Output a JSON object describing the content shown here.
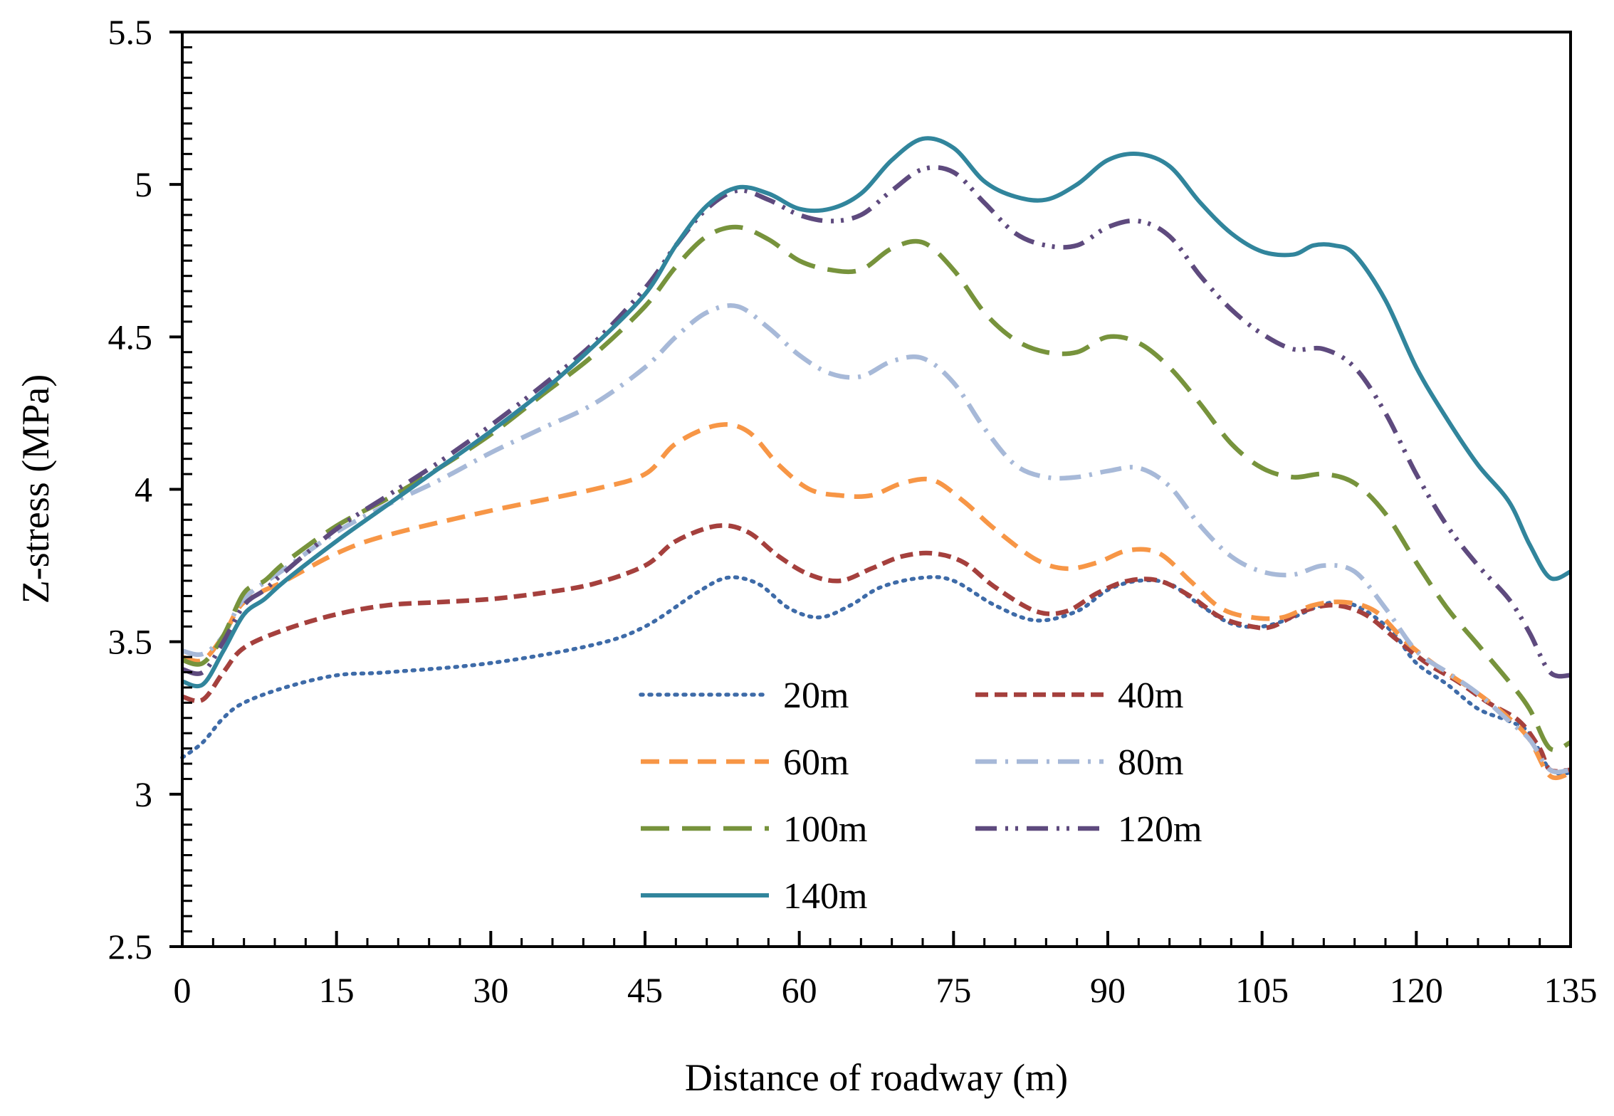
{
  "chart_data": {
    "type": "line",
    "xlabel": "Distance of roadway (m)",
    "ylabel": "Z-stress (MPa)",
    "xlim": [
      0,
      135
    ],
    "ylim": [
      2.5,
      5.5
    ],
    "xticks": [
      0,
      15,
      30,
      45,
      60,
      75,
      90,
      105,
      120,
      135
    ],
    "xtick_labels": [
      "0",
      "15",
      "30",
      "45",
      "60",
      "75",
      "90",
      "105",
      "120",
      "135"
    ],
    "yticks": [
      2.5,
      3,
      3.5,
      4,
      4.5,
      5,
      5.5
    ],
    "ytick_labels": [
      "2.5",
      "3",
      "3.5",
      "4",
      "4.5",
      "5",
      "5.5"
    ],
    "grid": false,
    "legend_position": "bottom-center",
    "series": [
      {
        "name": "20m",
        "color": "#3E6BA8",
        "style": "dotted",
        "x": [
          0,
          2,
          4,
          6,
          10,
          15,
          20,
          30,
          40,
          45,
          50,
          53,
          56,
          59,
          62,
          65,
          68,
          72,
          75,
          79,
          83,
          87,
          90,
          93,
          96,
          99,
          102,
          105,
          108,
          110,
          112,
          114,
          116,
          118,
          120,
          123,
          126,
          129,
          131,
          133,
          135
        ],
        "y": [
          3.12,
          3.17,
          3.25,
          3.3,
          3.35,
          3.39,
          3.4,
          3.43,
          3.49,
          3.55,
          3.66,
          3.71,
          3.69,
          3.61,
          3.58,
          3.62,
          3.68,
          3.71,
          3.7,
          3.62,
          3.57,
          3.6,
          3.67,
          3.7,
          3.69,
          3.62,
          3.56,
          3.55,
          3.58,
          3.61,
          3.63,
          3.62,
          3.58,
          3.52,
          3.43,
          3.36,
          3.28,
          3.24,
          3.2,
          3.08,
          3.07
        ]
      },
      {
        "name": "40m",
        "color": "#A5403D",
        "style": "short-dash",
        "x": [
          0,
          2,
          4,
          6,
          10,
          15,
          20,
          25,
          30,
          35,
          40,
          45,
          48,
          52,
          55,
          58,
          61,
          64,
          67,
          70,
          73,
          76,
          79,
          83,
          86,
          89,
          92,
          95,
          98,
          101,
          104,
          106,
          109,
          112,
          115,
          118,
          121,
          124,
          127,
          130,
          132,
          133,
          135
        ],
        "y": [
          3.32,
          3.31,
          3.4,
          3.48,
          3.54,
          3.59,
          3.62,
          3.63,
          3.64,
          3.66,
          3.69,
          3.75,
          3.83,
          3.88,
          3.86,
          3.78,
          3.72,
          3.7,
          3.74,
          3.78,
          3.79,
          3.76,
          3.68,
          3.6,
          3.6,
          3.66,
          3.7,
          3.7,
          3.65,
          3.58,
          3.55,
          3.55,
          3.6,
          3.62,
          3.59,
          3.51,
          3.43,
          3.37,
          3.3,
          3.24,
          3.15,
          3.08,
          3.08
        ]
      },
      {
        "name": "60m",
        "color": "#F79646",
        "style": "dash",
        "x": [
          0,
          2,
          4,
          6,
          10,
          15,
          20,
          30,
          40,
          45,
          48,
          52,
          55,
          58,
          61,
          64,
          67,
          70,
          73,
          76,
          79,
          83,
          86,
          89,
          92,
          95,
          98,
          101,
          104,
          107,
          110,
          113,
          116,
          119,
          122,
          126,
          129,
          131,
          133,
          135
        ],
        "y": [
          3.45,
          3.44,
          3.52,
          3.63,
          3.7,
          3.79,
          3.85,
          3.93,
          4.0,
          4.05,
          4.15,
          4.21,
          4.19,
          4.08,
          4.0,
          3.98,
          3.98,
          4.02,
          4.03,
          3.96,
          3.87,
          3.77,
          3.74,
          3.76,
          3.8,
          3.79,
          3.7,
          3.61,
          3.58,
          3.58,
          3.62,
          3.63,
          3.6,
          3.5,
          3.42,
          3.33,
          3.25,
          3.18,
          3.06,
          3.07
        ]
      },
      {
        "name": "80m",
        "color": "#A7B9D8",
        "style": "dash-dot",
        "x": [
          0,
          2,
          4,
          6,
          10,
          15,
          20,
          25,
          30,
          35,
          40,
          45,
          48,
          51,
          54,
          57,
          60,
          63,
          66,
          69,
          72,
          75,
          78,
          81,
          84,
          87,
          90,
          93,
          96,
          99,
          102,
          105,
          108,
          111,
          114,
          117,
          120,
          123,
          126,
          129,
          131,
          133,
          135
        ],
        "y": [
          3.47,
          3.46,
          3.52,
          3.64,
          3.74,
          3.86,
          3.95,
          4.03,
          4.12,
          4.2,
          4.28,
          4.4,
          4.5,
          4.58,
          4.6,
          4.53,
          4.44,
          4.38,
          4.37,
          4.42,
          4.43,
          4.35,
          4.2,
          4.08,
          4.04,
          4.04,
          4.06,
          4.07,
          4.01,
          3.88,
          3.78,
          3.73,
          3.72,
          3.75,
          3.73,
          3.61,
          3.47,
          3.4,
          3.33,
          3.24,
          3.18,
          3.08,
          3.08
        ]
      },
      {
        "name": "100m",
        "color": "#77933C",
        "style": "long-dash",
        "x": [
          0,
          2,
          4,
          6,
          8,
          10,
          15,
          20,
          25,
          30,
          35,
          40,
          45,
          48,
          51,
          54,
          57,
          60,
          63,
          66,
          69,
          72,
          75,
          78,
          81,
          84,
          87,
          90,
          93,
          96,
          99,
          102,
          105,
          108,
          111,
          114,
          117,
          120,
          123,
          126,
          129,
          131,
          133,
          135
        ],
        "y": [
          3.44,
          3.43,
          3.52,
          3.66,
          3.7,
          3.76,
          3.88,
          3.97,
          4.07,
          4.18,
          4.31,
          4.44,
          4.6,
          4.73,
          4.83,
          4.86,
          4.82,
          4.75,
          4.72,
          4.72,
          4.79,
          4.81,
          4.72,
          4.58,
          4.49,
          4.45,
          4.45,
          4.5,
          4.48,
          4.4,
          4.28,
          4.15,
          4.07,
          4.04,
          4.05,
          4.02,
          3.92,
          3.76,
          3.61,
          3.49,
          3.37,
          3.28,
          3.15,
          3.17
        ]
      },
      {
        "name": "120m",
        "color": "#5E4A7E",
        "style": "dash-dot-dot",
        "x": [
          0,
          2,
          4,
          6,
          8,
          10,
          15,
          20,
          25,
          30,
          35,
          40,
          45,
          48,
          51,
          54,
          57,
          60,
          63,
          66,
          69,
          72,
          75,
          78,
          81,
          84,
          87,
          90,
          93,
          96,
          99,
          102,
          105,
          108,
          111,
          114,
          117,
          120,
          123,
          126,
          129,
          131,
          133,
          135
        ],
        "y": [
          3.41,
          3.4,
          3.5,
          3.62,
          3.67,
          3.73,
          3.87,
          3.98,
          4.09,
          4.21,
          4.34,
          4.48,
          4.66,
          4.8,
          4.92,
          4.98,
          4.95,
          4.9,
          4.88,
          4.9,
          4.98,
          5.05,
          5.04,
          4.94,
          4.84,
          4.8,
          4.8,
          4.86,
          4.88,
          4.83,
          4.7,
          4.59,
          4.51,
          4.46,
          4.46,
          4.4,
          4.25,
          4.05,
          3.88,
          3.75,
          3.64,
          3.53,
          3.4,
          3.39
        ]
      },
      {
        "name": "140m",
        "color": "#31859C",
        "style": "solid",
        "x": [
          0,
          2,
          4,
          6,
          8,
          10,
          15,
          20,
          25,
          30,
          35,
          40,
          45,
          48,
          51,
          54,
          57,
          60,
          63,
          66,
          69,
          72,
          75,
          78,
          81,
          84,
          87,
          90,
          93,
          96,
          99,
          102,
          105,
          108,
          110,
          112,
          114,
          117,
          120,
          123,
          126,
          129,
          131,
          133,
          135
        ],
        "y": [
          3.37,
          3.36,
          3.47,
          3.59,
          3.64,
          3.7,
          3.83,
          3.95,
          4.07,
          4.19,
          4.32,
          4.47,
          4.64,
          4.8,
          4.93,
          4.99,
          4.97,
          4.92,
          4.92,
          4.97,
          5.08,
          5.15,
          5.12,
          5.01,
          4.96,
          4.95,
          5.0,
          5.08,
          5.1,
          5.06,
          4.94,
          4.84,
          4.78,
          4.77,
          4.8,
          4.8,
          4.77,
          4.62,
          4.4,
          4.23,
          4.08,
          3.96,
          3.82,
          3.71,
          3.73
        ]
      }
    ]
  }
}
